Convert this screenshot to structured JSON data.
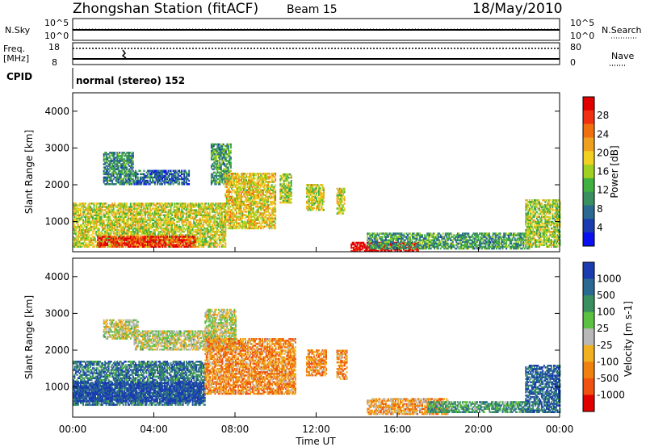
{
  "header": {
    "station": "Zhongshan Station (fitACF)",
    "beam": "Beam 15",
    "date": "18/May/2010"
  },
  "strips": {
    "nsky_label": "N.Sky",
    "nsky_ticks": [
      "10^5",
      "10^0"
    ],
    "nsearch_label": "N.Search",
    "freq_label": "Freq.",
    "freq_unit": "[MHz]",
    "freq_ticks": [
      "18",
      "8"
    ],
    "nave_ticks": [
      "80",
      "0"
    ],
    "nave_label": "Nave",
    "cpid_label": "CPID",
    "cpid_text": "normal (stereo) 152"
  },
  "chart_data": [
    {
      "type": "heatmap",
      "name": "power",
      "xlabel": "Time UT",
      "ylabel": "Slant Range [km]",
      "xlim": [
        0,
        24
      ],
      "ylim": [
        180,
        4500
      ],
      "x_ticks": [
        "00:00",
        "04:00",
        "08:00",
        "12:00",
        "16:00",
        "20:00",
        "00:00"
      ],
      "y_ticks": [
        1000,
        2000,
        3000,
        4000
      ],
      "colorbar": {
        "label": "Power [dB]",
        "ticks": [
          "28",
          "24",
          "20",
          "16",
          "12",
          "8",
          "4"
        ],
        "colors": [
          "#e00000",
          "#f03010",
          "#f07010",
          "#f0a020",
          "#f0d020",
          "#a0d020",
          "#40b040",
          "#3a8f60",
          "#2a6a90",
          "#1a3cb0",
          "#0a10f0"
        ]
      },
      "regions": [
        {
          "t0": 0.0,
          "t1": 7.5,
          "r0": 300,
          "r1": 1500,
          "level": 0.55
        },
        {
          "t0": 1.2,
          "t1": 6.0,
          "r0": 300,
          "r1": 600,
          "level": 0.9
        },
        {
          "t0": 1.5,
          "t1": 3.0,
          "r0": 2000,
          "r1": 2900,
          "level": 0.3
        },
        {
          "t0": 3.0,
          "t1": 5.7,
          "r0": 2000,
          "r1": 2400,
          "level": 0.2
        },
        {
          "t0": 6.8,
          "t1": 7.8,
          "r0": 2000,
          "r1": 3100,
          "level": 0.35
        },
        {
          "t0": 7.5,
          "t1": 10.0,
          "r0": 800,
          "r1": 2300,
          "level": 0.6
        },
        {
          "t0": 10.2,
          "t1": 10.8,
          "r0": 1500,
          "r1": 2300,
          "level": 0.5
        },
        {
          "t0": 11.5,
          "t1": 12.4,
          "r0": 1300,
          "r1": 2000,
          "level": 0.55
        },
        {
          "t0": 13.0,
          "t1": 13.4,
          "r0": 1200,
          "r1": 1900,
          "level": 0.55
        },
        {
          "t0": 13.7,
          "t1": 17.0,
          "r0": 180,
          "r1": 450,
          "level": 1.0
        },
        {
          "t0": 14.5,
          "t1": 22.5,
          "r0": 250,
          "r1": 700,
          "level": 0.35
        },
        {
          "t0": 22.3,
          "t1": 24.0,
          "r0": 300,
          "r1": 1600,
          "level": 0.5
        }
      ]
    },
    {
      "type": "heatmap",
      "name": "velocity",
      "xlabel": "Time UT",
      "ylabel": "Slant Range [km]",
      "xlim": [
        0,
        24
      ],
      "ylim": [
        180,
        4500
      ],
      "x_ticks": [
        "00:00",
        "04:00",
        "08:00",
        "12:00",
        "16:00",
        "20:00",
        "00:00"
      ],
      "y_ticks": [
        1000,
        2000,
        3000,
        4000
      ],
      "colorbar": {
        "label": "Velocity [m s-1]",
        "ticks": [
          "1000",
          "500",
          "100",
          "25",
          "-25",
          "-100",
          "-500",
          "-1000"
        ],
        "colors": [
          "#1a3cb0",
          "#2a6a90",
          "#3a8f60",
          "#5cc040",
          "#b8b8b8",
          "#f0b020",
          "#f08010",
          "#f05010",
          "#e00000"
        ]
      },
      "regions": [
        {
          "t0": 0.0,
          "t1": 6.5,
          "r0": 500,
          "r1": 1700,
          "level": 0.2
        },
        {
          "t0": 0.0,
          "t1": 6.5,
          "r0": 600,
          "r1": 1100,
          "level": 0.05
        },
        {
          "t0": 1.5,
          "t1": 3.2,
          "r0": 2300,
          "r1": 2800,
          "level": 0.5
        },
        {
          "t0": 3.0,
          "t1": 7.0,
          "r0": 2000,
          "r1": 2500,
          "level": 0.5
        },
        {
          "t0": 6.5,
          "t1": 8.0,
          "r0": 2000,
          "r1": 3100,
          "level": 0.5
        },
        {
          "t0": 6.5,
          "t1": 11.0,
          "r0": 800,
          "r1": 2300,
          "level": 0.7
        },
        {
          "t0": 11.5,
          "t1": 12.5,
          "r0": 1300,
          "r1": 2000,
          "level": 0.7
        },
        {
          "t0": 13.0,
          "t1": 13.5,
          "r0": 1200,
          "r1": 2000,
          "level": 0.7
        },
        {
          "t0": 14.5,
          "t1": 18.5,
          "r0": 250,
          "r1": 700,
          "level": 0.65
        },
        {
          "t0": 17.5,
          "t1": 22.5,
          "r0": 300,
          "r1": 600,
          "level": 0.3
        },
        {
          "t0": 22.3,
          "t1": 24.0,
          "r0": 300,
          "r1": 1600,
          "level": 0.15
        }
      ]
    }
  ]
}
